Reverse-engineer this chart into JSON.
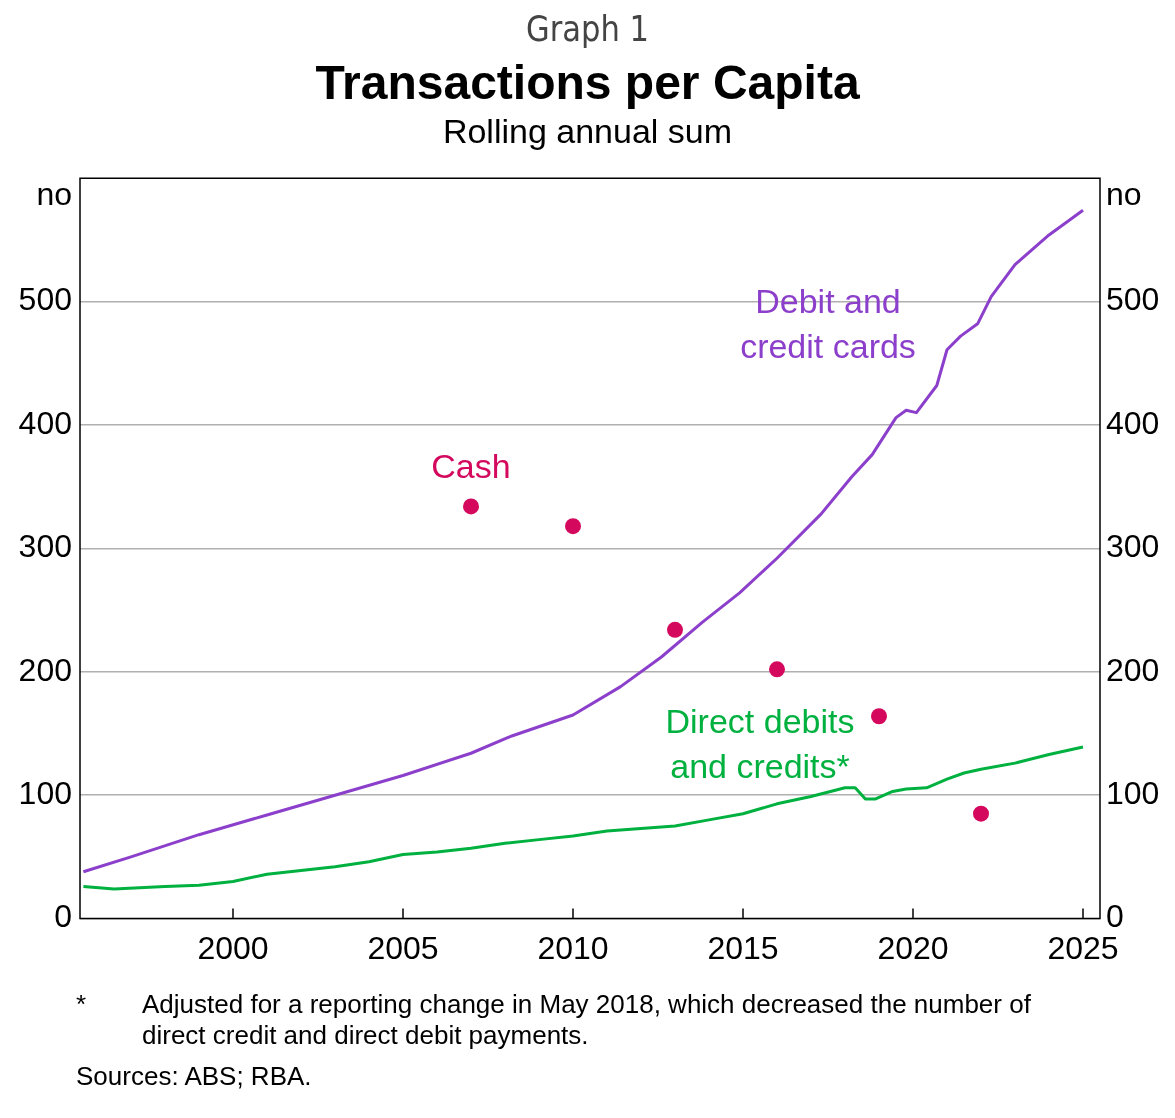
{
  "chart_data": {
    "type": "line",
    "title": "Transactions per Capita",
    "subtitle": "Rolling annual sum",
    "ylabel": "no",
    "y2label": "no",
    "annotations": [
      "Graph 1",
      "*\tAdjusted for a reporting change in May 2018, which decreased the number of direct credit and direct debit payments.",
      "Sources: ABS; RBA."
    ],
    "xlim": [
      1995.5,
      2025.5
    ],
    "xticks": [
      2000,
      2005,
      2010,
      2015,
      2020,
      2025
    ],
    "ylim": [
      0,
      600
    ],
    "yticks": [
      0,
      100,
      200,
      300,
      400,
      500
    ],
    "y2lim": [
      0,
      600
    ],
    "y2ticks": [
      0,
      100,
      200,
      300,
      400,
      500
    ],
    "grid": "y",
    "legend": false,
    "series": [
      {
        "name": "Debit and\ncredit cards",
        "color": "#8b3fcb",
        "marker": "none",
        "x": [
          1995.6,
          1997,
          1999,
          2001,
          2003,
          2005,
          2007,
          2008.2,
          2010,
          2011.4,
          2012.6,
          2013.8,
          2014.9,
          2016,
          2017.3,
          2018.2,
          2018.8,
          2019.5,
          2019.8,
          2020.1,
          2020.7,
          2021,
          2021.4,
          2021.9,
          2022.3,
          2023,
          2024,
          2025
        ],
        "values": [
          38,
          50,
          68,
          84,
          100,
          116,
          134,
          148,
          165,
          188,
          212,
          240,
          264,
          292,
          328,
          358,
          376,
          406,
          412,
          410,
          432,
          461,
          472,
          482,
          504,
          530,
          554,
          574
        ]
      },
      {
        "name": "Cash",
        "color": "#d4095d",
        "type": "scatter",
        "marker": "circle",
        "x": [
          2007,
          2010,
          2013,
          2016,
          2019,
          2022
        ],
        "values": [
          334,
          318,
          234,
          202,
          164,
          85
        ]
      },
      {
        "name": "Direct debits\nand credits*",
        "color": "#00b140",
        "marker": "none",
        "x": [
          1995.6,
          1996.5,
          1998,
          1999,
          2000,
          2001,
          2002,
          2003,
          2004,
          2005,
          2006,
          2007,
          2008,
          2009,
          2010,
          2011,
          2012,
          2013,
          2014,
          2015,
          2016,
          2017,
          2018,
          2018.3,
          2018.6,
          2018.9,
          2019.4,
          2019.8,
          2020.4,
          2021,
          2021.5,
          2022,
          2023,
          2024,
          2025
        ],
        "values": [
          26,
          24,
          26,
          27,
          30,
          36,
          39,
          42,
          46,
          52,
          54,
          57,
          61,
          64,
          67,
          71,
          73,
          75,
          80,
          85,
          93,
          99,
          106,
          106,
          97,
          97,
          103,
          105,
          106,
          113,
          118,
          121,
          126,
          133,
          139
        ]
      }
    ]
  }
}
